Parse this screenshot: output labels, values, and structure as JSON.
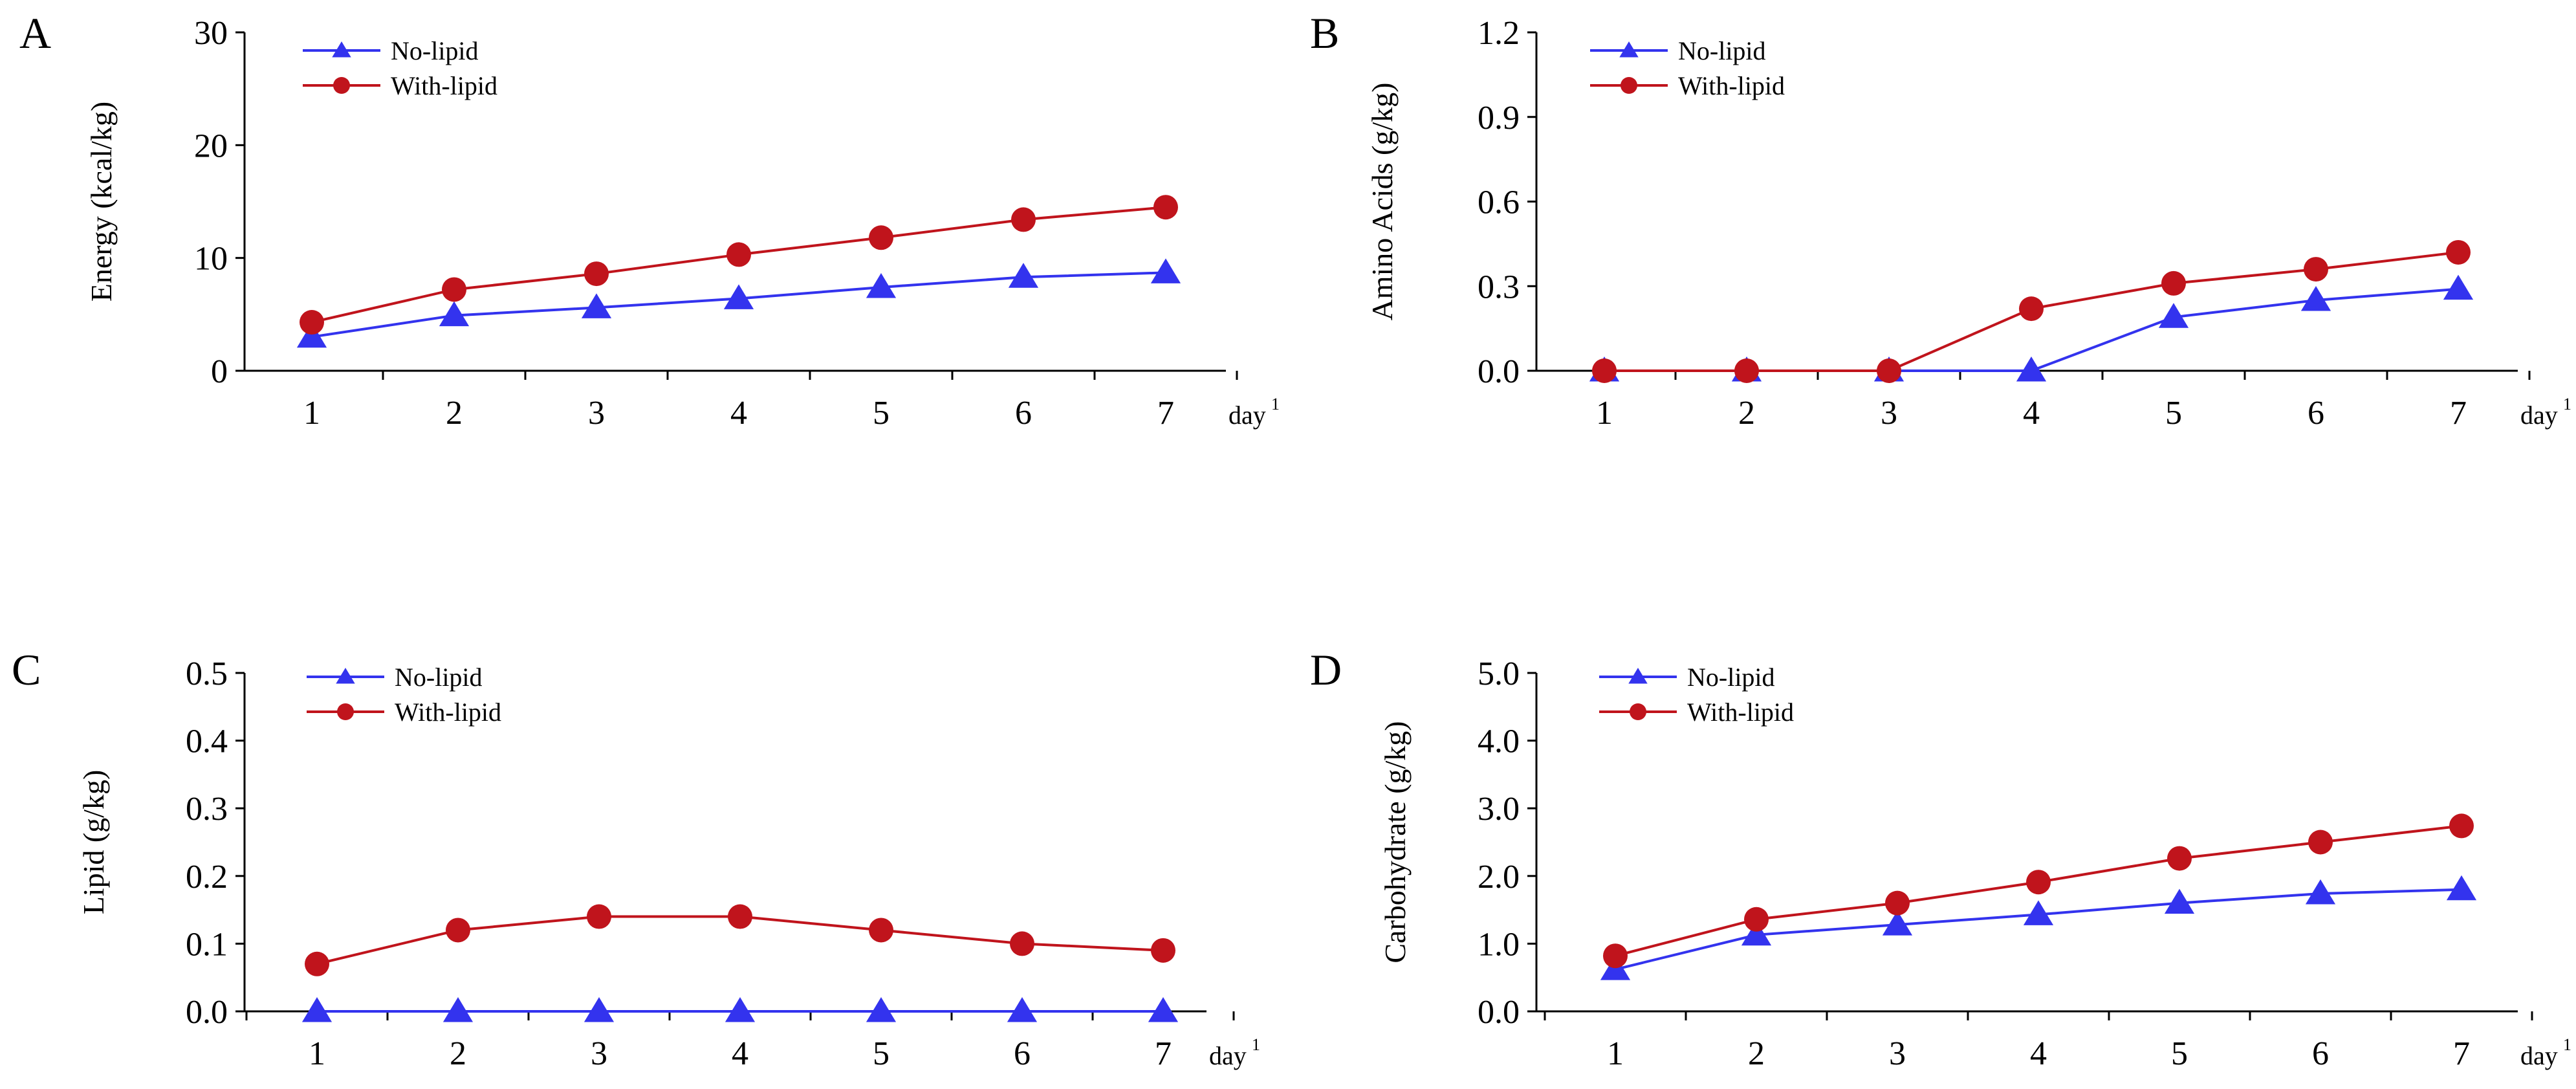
{
  "figure": {
    "colors": {
      "no_lipid": "#3333ee",
      "with_lipid": "#c0141c"
    }
  },
  "chart_data": [
    {
      "panel": "A",
      "type": "line",
      "ylabel": "Energy (kcal/kg)",
      "x": [
        1,
        2,
        3,
        4,
        5,
        6,
        7
      ],
      "x_tick_labels": [
        "1",
        "2",
        "3",
        "4",
        "5",
        "6",
        "7"
      ],
      "x_unit": "day",
      "x_unit_sup": "1",
      "ylim": [
        0,
        30
      ],
      "y_ticks": [
        0,
        10,
        20,
        30
      ],
      "y_tick_labels": [
        "0",
        "10",
        "20",
        "30"
      ],
      "legend_position": "top-left",
      "series": [
        {
          "name": "No-lipid",
          "marker": "triangle",
          "color": "#3333ee",
          "values": [
            3.0,
            4.9,
            5.6,
            6.4,
            7.4,
            8.3,
            8.7
          ]
        },
        {
          "name": "With-lipid",
          "marker": "circle",
          "color": "#c0141c",
          "values": [
            4.3,
            7.2,
            8.6,
            10.3,
            11.8,
            13.4,
            14.5
          ]
        }
      ]
    },
    {
      "panel": "B",
      "type": "line",
      "ylabel": "Amino Acids (g/kg)",
      "x": [
        1,
        2,
        3,
        4,
        5,
        6,
        7
      ],
      "x_tick_labels": [
        "1",
        "2",
        "3",
        "4",
        "5",
        "6",
        "7"
      ],
      "x_unit": "day",
      "x_unit_sup": "1",
      "ylim": [
        0,
        1.2
      ],
      "y_ticks": [
        0,
        0.3,
        0.6,
        0.9,
        1.2
      ],
      "y_tick_labels": [
        "0.0",
        "0.3",
        "0.6",
        "0.9",
        "1.2"
      ],
      "legend_position": "top-left",
      "series": [
        {
          "name": "No-lipid",
          "marker": "triangle",
          "color": "#3333ee",
          "values": [
            0,
            0,
            0,
            0,
            0.19,
            0.25,
            0.29
          ]
        },
        {
          "name": "With-lipid",
          "marker": "circle",
          "color": "#c0141c",
          "values": [
            0,
            0,
            0,
            0.22,
            0.31,
            0.36,
            0.42
          ]
        }
      ]
    },
    {
      "panel": "C",
      "type": "line",
      "ylabel": "Lipid (g/kg)",
      "x": [
        1,
        2,
        3,
        4,
        5,
        6,
        7
      ],
      "x_tick_labels": [
        "1",
        "2",
        "3",
        "4",
        "5",
        "6",
        "7"
      ],
      "x_unit": "day",
      "x_unit_sup": "1",
      "ylim": [
        0,
        0.5
      ],
      "y_ticks": [
        0,
        0.1,
        0.2,
        0.3,
        0.4,
        0.5
      ],
      "y_tick_labels": [
        "0.0",
        "0.1",
        "0.2",
        "0.3",
        "0.4",
        "0.5"
      ],
      "legend_position": "top-left",
      "series": [
        {
          "name": "No-lipid",
          "marker": "triangle",
          "color": "#3333ee",
          "values": [
            0,
            0,
            0,
            0,
            0,
            0,
            0
          ]
        },
        {
          "name": "With-lipid",
          "marker": "circle",
          "color": "#c0141c",
          "values": [
            0.07,
            0.12,
            0.14,
            0.14,
            0.12,
            0.1,
            0.09
          ]
        }
      ]
    },
    {
      "panel": "D",
      "type": "line",
      "ylabel": "Carbohydrate (g/kg)",
      "x": [
        1,
        2,
        3,
        4,
        5,
        6,
        7
      ],
      "x_tick_labels": [
        "1",
        "2",
        "3",
        "4",
        "5",
        "6",
        "7"
      ],
      "x_unit": "day",
      "x_unit_sup": "1",
      "ylim": [
        0,
        5
      ],
      "y_ticks": [
        0,
        1,
        2,
        3,
        4,
        5
      ],
      "y_tick_labels": [
        "0.0",
        "1.0",
        "2.0",
        "3.0",
        "4.0",
        "5.0"
      ],
      "legend_position": "top-left",
      "series": [
        {
          "name": "No-lipid",
          "marker": "triangle",
          "color": "#3333ee",
          "values": [
            0.62,
            1.13,
            1.28,
            1.43,
            1.6,
            1.74,
            1.8
          ]
        },
        {
          "name": "With-lipid",
          "marker": "circle",
          "color": "#c0141c",
          "values": [
            0.82,
            1.36,
            1.6,
            1.91,
            2.26,
            2.5,
            2.74
          ]
        }
      ]
    }
  ]
}
